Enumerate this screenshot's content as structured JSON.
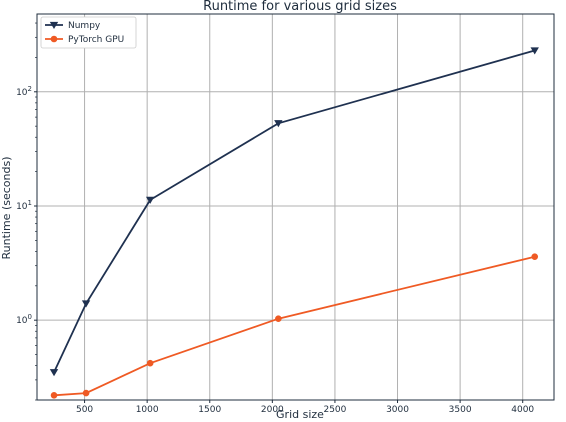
{
  "chart_data": {
    "type": "line",
    "title": "Runtime for various grid sizes",
    "xlabel": "Grid size",
    "ylabel": "Runtime (seconds)",
    "xlim": [
      120,
      4250
    ],
    "ylim": [
      0.2,
      480
    ],
    "yscale": "log",
    "grid": true,
    "legend_position": "top-left",
    "x_ticks": [
      500,
      1000,
      1500,
      2000,
      2500,
      3000,
      3500,
      4000
    ],
    "x_tick_labels": [
      "500",
      "1000",
      "1500",
      "2000",
      "2500",
      "3000",
      "3500",
      "4000"
    ],
    "y_ticks": [
      1,
      10,
      100
    ],
    "y_tick_labels": [
      {
        "base": "10",
        "exp": "0"
      },
      {
        "base": "10",
        "exp": "1"
      },
      {
        "base": "10",
        "exp": "2"
      }
    ],
    "series": [
      {
        "name": "Numpy",
        "color": "#1f3150",
        "marker": "triangle-down",
        "x": [
          256,
          512,
          1024,
          2048,
          4096
        ],
        "y": [
          0.35,
          1.4,
          11.3,
          53,
          230
        ]
      },
      {
        "name": "PyTorch GPU",
        "color": "#ef5a24",
        "marker": "circle",
        "x": [
          256,
          512,
          1024,
          2048,
          4096
        ],
        "y": [
          0.22,
          0.23,
          0.42,
          1.03,
          3.6
        ]
      }
    ]
  }
}
